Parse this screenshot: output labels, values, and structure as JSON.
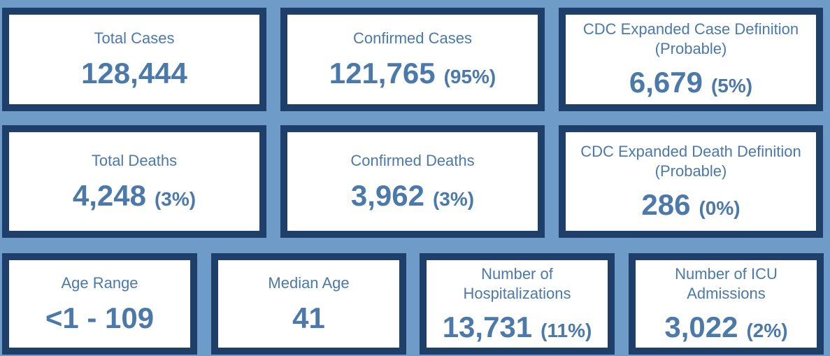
{
  "colors": {
    "background": "#6f9bc9",
    "card_border": "#1f3f6b",
    "card_bg": "#ffffff",
    "text": "#4a79aa"
  },
  "cards": {
    "total_cases": {
      "label": "Total Cases",
      "value": "128,444"
    },
    "confirmed_cases": {
      "label": "Confirmed Cases",
      "value": "121,765",
      "pct": "(95%)"
    },
    "probable_cases": {
      "label_line1": "CDC Expanded Case Definition",
      "label_line2": "(Probable)",
      "value": "6,679",
      "pct": "(5%)"
    },
    "total_deaths": {
      "label": "Total Deaths",
      "value": "4,248",
      "pct": "(3%)"
    },
    "confirmed_deaths": {
      "label": "Confirmed Deaths",
      "value": "3,962",
      "pct": "(3%)"
    },
    "probable_deaths": {
      "label_line1": "CDC Expanded Death Definition",
      "label_line2": "(Probable)",
      "value": "286",
      "pct": "(0%)"
    },
    "age_range": {
      "label": "Age Range",
      "value": "<1 - 109"
    },
    "median_age": {
      "label": "Median Age",
      "value": "41"
    },
    "hospitalizations": {
      "label_line1": "Number of",
      "label_line2": "Hospitalizations",
      "value": "13,731",
      "pct": "(11%)"
    },
    "icu_admissions": {
      "label_line1": "Number of ICU",
      "label_line2": "Admissions",
      "value": "3,022",
      "pct": "(2%)"
    }
  }
}
